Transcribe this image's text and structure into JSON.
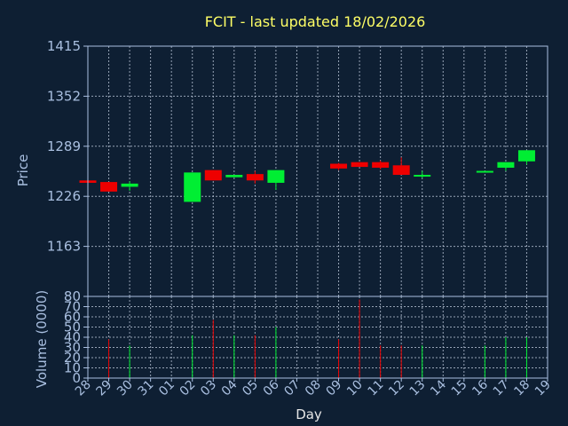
{
  "chart_data": {
    "type": "candlestick",
    "title": "FCIT - last updated 18/02/2026",
    "ylabel": "Price",
    "xlabel": "Day",
    "volume_label": "Volume (0000)",
    "price_ticks": [
      "1415",
      "1352",
      "1289",
      "1226",
      "1163"
    ],
    "price_range": [
      1100,
      1415
    ],
    "volume_ticks": [
      "80",
      "70",
      "60",
      "50",
      "40",
      "30",
      "20",
      "10",
      "0"
    ],
    "volume_range": [
      0,
      80
    ],
    "days": [
      "28",
      "29",
      "30",
      "31",
      "01",
      "02",
      "03",
      "04",
      "05",
      "06",
      "07",
      "08",
      "09",
      "10",
      "11",
      "12",
      "13",
      "14",
      "15",
      "16",
      "17",
      "18",
      "19"
    ],
    "candles": [
      {
        "day": "28",
        "open": 1246,
        "close": 1243,
        "high": 1246,
        "low": 1243,
        "volume": 0
      },
      {
        "day": "29",
        "open": 1244,
        "close": 1232,
        "high": 1244,
        "low": 1232,
        "volume": 38
      },
      {
        "day": "30",
        "open": 1238,
        "close": 1242,
        "high": 1245,
        "low": 1233,
        "volume": 32
      },
      {
        "day": "02",
        "open": 1219,
        "close": 1256,
        "high": 1256,
        "low": 1219,
        "volume": 42
      },
      {
        "day": "03",
        "open": 1259,
        "close": 1246,
        "high": 1259,
        "low": 1246,
        "volume": 57
      },
      {
        "day": "04",
        "open": 1250,
        "close": 1253,
        "high": 1253,
        "low": 1250,
        "volume": 42
      },
      {
        "day": "05",
        "open": 1254,
        "close": 1246,
        "high": 1258,
        "low": 1242,
        "volume": 42
      },
      {
        "day": "06",
        "open": 1243,
        "close": 1259,
        "high": 1259,
        "low": 1234,
        "volume": 50
      },
      {
        "day": "09",
        "open": 1267,
        "close": 1261,
        "high": 1268,
        "low": 1259,
        "volume": 38
      },
      {
        "day": "10",
        "open": 1269,
        "close": 1263,
        "high": 1269,
        "low": 1263,
        "volume": 77
      },
      {
        "day": "11",
        "open": 1269,
        "close": 1262,
        "high": 1271,
        "low": 1260,
        "volume": 32
      },
      {
        "day": "12",
        "open": 1265,
        "close": 1253,
        "high": 1275,
        "low": 1253,
        "volume": 32
      },
      {
        "day": "13",
        "open": 1251,
        "close": 1253,
        "high": 1258,
        "low": 1249,
        "volume": 32
      },
      {
        "day": "16",
        "open": 1256,
        "close": 1258,
        "high": 1258,
        "low": 1256,
        "volume": 32
      },
      {
        "day": "17",
        "open": 1262,
        "close": 1269,
        "high": 1269,
        "low": 1258,
        "volume": 40
      },
      {
        "day": "18",
        "open": 1270,
        "close": 1284,
        "high": 1284,
        "low": 1266,
        "volume": 40
      }
    ],
    "grid": true
  },
  "colors": {
    "background": "#0e1f33",
    "plot_border": "#a9bfe0",
    "grid": "#b8c4d6",
    "up": "#00ee33",
    "down": "#ee0000",
    "title": "#ffff66"
  }
}
